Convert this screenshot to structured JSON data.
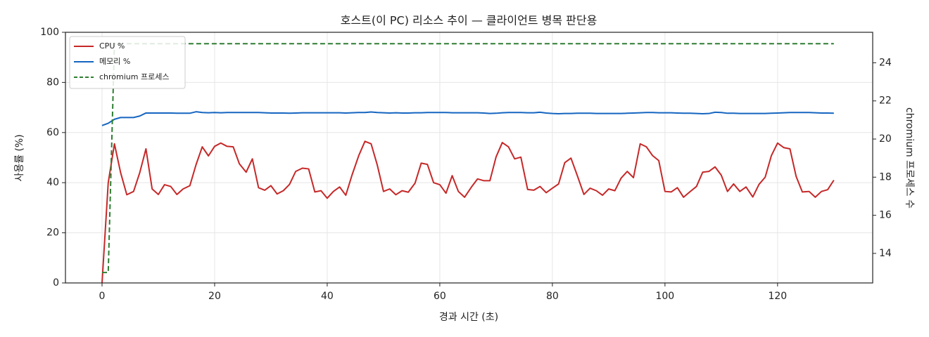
{
  "chart_data": {
    "type": "line",
    "title": "호스트(이 PC) 리소스 추이 — 클라이언트 병목 판단용",
    "x_label": "경과 시간 (초)",
    "y_label": "사용률 (%)",
    "y2_label": "chromium 프로세스 수",
    "x": [
      0,
      1.1,
      2.2,
      3.3,
      4.4,
      5.6,
      6.7,
      7.8,
      8.9,
      10,
      11.1,
      12.2,
      13.3,
      14.4,
      15.6,
      16.7,
      17.8,
      18.9,
      20,
      21.1,
      22.2,
      23.3,
      24.4,
      25.6,
      26.7,
      27.8,
      28.9,
      30,
      31.1,
      32.2,
      33.3,
      34.4,
      35.6,
      36.7,
      37.8,
      38.9,
      40,
      41.1,
      42.2,
      43.3,
      44.4,
      45.6,
      46.7,
      47.8,
      48.9,
      50,
      51.1,
      52.2,
      53.3,
      54.4,
      55.6,
      56.7,
      57.8,
      58.9,
      60,
      61.1,
      62.2,
      63.3,
      64.4,
      65.6,
      66.7,
      67.8,
      68.9,
      70,
      71.1,
      72.2,
      73.3,
      74.4,
      75.6,
      76.7,
      77.8,
      78.9,
      80,
      81.1,
      82.2,
      83.3,
      84.4,
      85.6,
      86.7,
      87.8,
      88.9,
      90,
      91.1,
      92.2,
      93.3,
      94.4,
      95.6,
      96.7,
      97.8,
      98.9,
      100,
      101.1,
      102.2,
      103.3,
      104.4,
      105.6,
      106.7,
      107.8,
      108.9,
      110,
      111.1,
      112.2,
      113.3,
      114.4,
      115.6,
      116.7,
      117.8,
      118.9,
      120,
      121.1,
      122.2,
      123.3,
      124.4,
      125.6,
      126.7,
      127.8,
      128.9,
      130
    ],
    "series": [
      {
        "name": "CPU %",
        "color": "#c62828",
        "dash": false,
        "values": [
          0,
          40,
          55.5,
          44,
          35.2,
          36.5,
          44,
          53.5,
          37.5,
          35.3,
          39.2,
          38.5,
          35.3,
          37.5,
          38.8,
          47.2,
          54.3,
          50.7,
          54.5,
          55.8,
          54.5,
          54.3,
          47.5,
          44.2,
          49.5,
          38,
          37,
          38.8,
          35.5,
          36.8,
          39.3,
          44.5,
          45.8,
          45.5,
          36.3,
          36.8,
          33.8,
          36.5,
          38.3,
          35,
          43,
          50.8,
          56.5,
          55.5,
          47,
          36.5,
          37.5,
          35.2,
          36.8,
          36.2,
          39.8,
          47.8,
          47.3,
          40,
          39.2,
          35.8,
          42.8,
          36.5,
          34.2,
          38.2,
          41.5,
          40.8,
          40.8,
          50.3,
          56,
          54.3,
          49.5,
          50.2,
          37.3,
          37,
          38.5,
          36,
          37.8,
          39.5,
          48,
          49.8,
          43,
          35.3,
          37.8,
          36.8,
          35,
          37.5,
          36.8,
          41.8,
          44.5,
          42,
          55.5,
          54.3,
          50.8,
          48.8,
          36.5,
          36.3,
          38,
          34.2,
          36.3,
          38.5,
          44.2,
          44.5,
          46.3,
          43,
          36.5,
          39.5,
          36.5,
          38.3,
          34.3,
          39.3,
          42.2,
          50.8,
          55.8,
          54,
          53.5,
          42.5,
          36.3,
          36.5,
          34.2,
          36.5,
          37.2,
          41
        ]
      },
      {
        "name": "메모리 %",
        "color": "#1565c0",
        "dash": false,
        "values": [
          62.8,
          63.7,
          65.3,
          66.0,
          66.0,
          66.0,
          66.6,
          67.8,
          67.8,
          67.8,
          67.8,
          67.8,
          67.7,
          67.7,
          67.7,
          68.3,
          68.0,
          67.9,
          68.0,
          67.9,
          68.0,
          68.0,
          68.0,
          68.0,
          68.0,
          68.0,
          67.9,
          67.8,
          67.8,
          67.8,
          67.7,
          67.8,
          67.9,
          67.9,
          67.9,
          67.9,
          67.9,
          67.9,
          67.9,
          67.8,
          67.9,
          68.0,
          68.0,
          68.2,
          68.0,
          67.9,
          67.8,
          67.9,
          67.8,
          67.8,
          67.9,
          67.9,
          68.0,
          68.0,
          68.0,
          68.0,
          67.9,
          67.9,
          67.9,
          67.9,
          67.9,
          67.8,
          67.6,
          67.7,
          67.9,
          68.0,
          68.0,
          68.0,
          67.9,
          67.9,
          68.1,
          67.8,
          67.6,
          67.5,
          67.6,
          67.6,
          67.7,
          67.7,
          67.7,
          67.6,
          67.6,
          67.6,
          67.6,
          67.6,
          67.7,
          67.8,
          67.9,
          68.0,
          68.0,
          67.9,
          67.9,
          67.9,
          67.8,
          67.7,
          67.7,
          67.6,
          67.5,
          67.6,
          68.1,
          68.0,
          67.7,
          67.7,
          67.6,
          67.6,
          67.6,
          67.6,
          67.6,
          67.7,
          67.8,
          67.9,
          68.0,
          68.0,
          68.0,
          68.0,
          67.9,
          67.8,
          67.8,
          67.7
        ]
      },
      {
        "name": "chromium 프로세스",
        "color": "#2e7d32",
        "dash": true,
        "axis": "y2",
        "values": [
          13,
          13,
          25,
          25,
          25,
          25,
          25,
          25,
          25,
          25,
          25,
          25,
          25,
          25,
          25,
          25,
          25,
          25,
          25,
          25,
          25,
          25,
          25,
          25,
          25,
          25,
          25,
          25,
          25,
          25,
          25,
          25,
          25,
          25,
          25,
          25,
          25,
          25,
          25,
          25,
          25,
          25,
          25,
          25,
          25,
          25,
          25,
          25,
          25,
          25,
          25,
          25,
          25,
          25,
          25,
          25,
          25,
          25,
          25,
          25,
          25,
          25,
          25,
          25,
          25,
          25,
          25,
          25,
          25,
          25,
          25,
          25,
          25,
          25,
          25,
          25,
          25,
          25,
          25,
          25,
          25,
          25,
          25,
          25,
          25,
          25,
          25,
          25,
          25,
          25,
          25,
          25,
          25,
          25,
          25,
          25,
          25,
          25,
          25,
          25,
          25,
          25,
          25,
          25,
          25,
          25,
          25,
          25,
          25,
          25,
          25,
          25,
          25,
          25,
          25,
          25,
          25,
          25
        ]
      }
    ],
    "xlim": [
      -6.5,
      136.9
    ],
    "xticks": [
      0,
      20,
      40,
      60,
      80,
      100,
      120
    ],
    "ylim": [
      0,
      100
    ],
    "yticks": [
      0,
      20,
      40,
      60,
      80,
      100
    ],
    "y2lim": [
      12.45,
      25.6
    ],
    "y2ticks": [
      14,
      16,
      18,
      20,
      22,
      24
    ],
    "grid": true,
    "legend": "upper-left"
  }
}
